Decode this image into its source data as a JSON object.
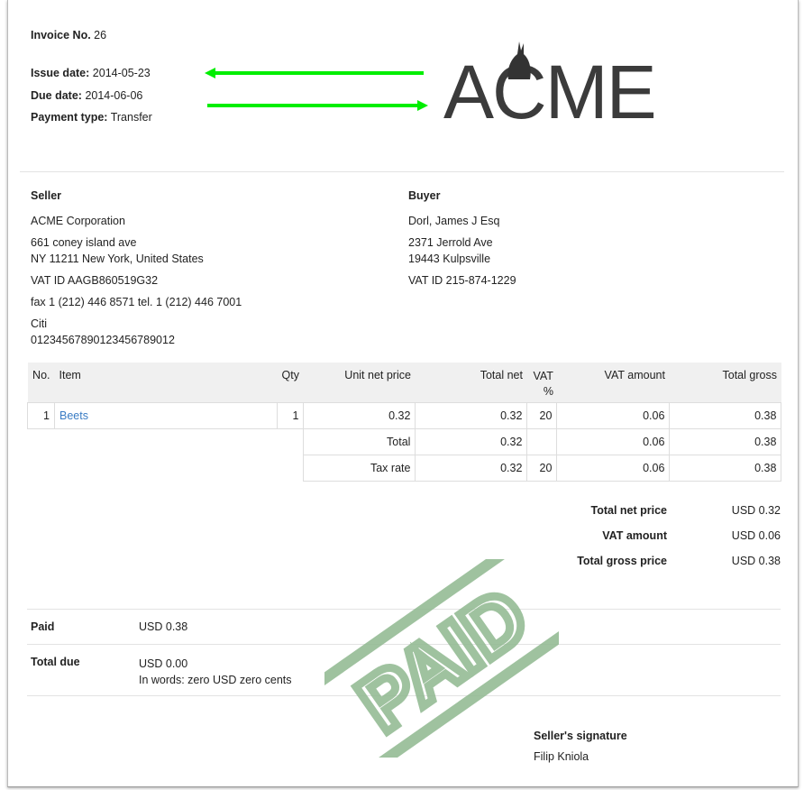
{
  "header": {
    "invoice_label": "Invoice No.",
    "invoice_no": "26",
    "issue_label": "Issue date:",
    "issue_date": "2014-05-23",
    "due_label": "Due date:",
    "due_date": "2014-06-06",
    "payment_label": "Payment type:",
    "payment_type": "Transfer",
    "logo": "ACME"
  },
  "seller": {
    "title": "Seller",
    "name": "ACME Corporation",
    "address1": "661 coney island ave",
    "address2": "NY 11211 New York, United States",
    "vat": "VAT ID AAGB860519G32",
    "contact": "fax 1 (212) 446 8571 tel. 1 (212) 446 7001",
    "bank": "Citi",
    "account": "01234567890123456789012"
  },
  "buyer": {
    "title": "Buyer",
    "name": "Dorl, James J Esq",
    "address1": "2371 Jerrold Ave",
    "address2": "19443 Kulpsville",
    "vat": "VAT ID 215-874-1229"
  },
  "table": {
    "headers": [
      "No.",
      "Item",
      "Qty",
      "Unit net price",
      "Total net",
      "VAT %",
      "VAT amount",
      "Total gross"
    ],
    "rows": [
      {
        "no": "1",
        "item": "Beets",
        "qty": "1",
        "unit": "0.32",
        "net": "0.32",
        "vat": "20",
        "vat_amount": "0.06",
        "gross": "0.38"
      }
    ],
    "total": {
      "label": "Total",
      "net": "0.32",
      "vat_amount": "0.06",
      "gross": "0.38"
    },
    "tax": {
      "label": "Tax rate",
      "net": "0.32",
      "vat": "20",
      "vat_amount": "0.06",
      "gross": "0.38"
    }
  },
  "summary": [
    {
      "label": "Total net price",
      "value": "USD 0.32"
    },
    {
      "label": "VAT amount",
      "value": "USD 0.06"
    },
    {
      "label": "Total gross price",
      "value": "USD 0.38"
    }
  ],
  "paid": {
    "label": "Paid",
    "value": "USD 0.38"
  },
  "due": {
    "label": "Total due",
    "value": "USD 0.00",
    "words": "In words: zero USD zero cents"
  },
  "signature": {
    "label": "Seller's signature",
    "name": "Filip Kniola"
  },
  "stamp": {
    "text": "PAID",
    "color": "#8fb88f"
  },
  "arrow_color": "#00ee00"
}
